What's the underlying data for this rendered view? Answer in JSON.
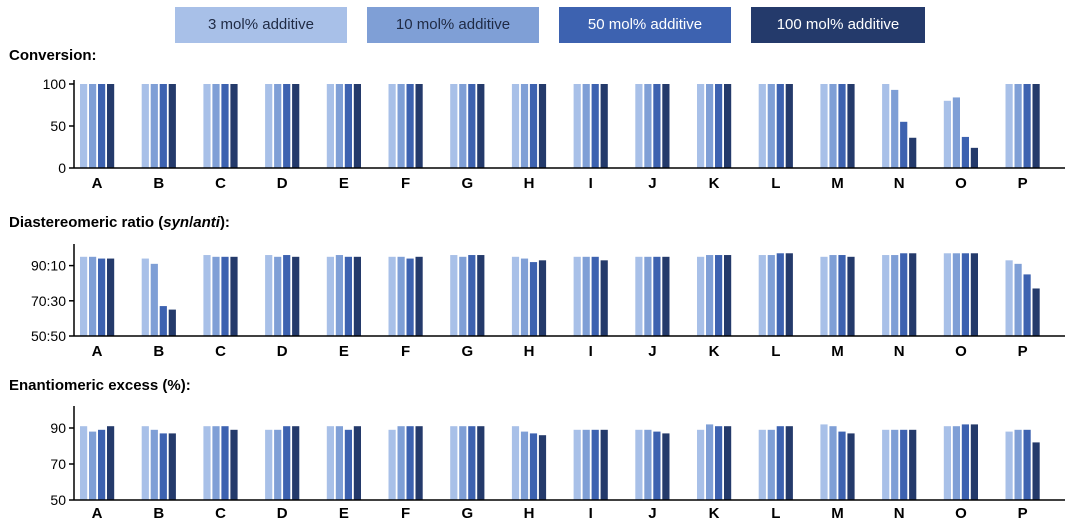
{
  "legend": {
    "items": [
      {
        "label": "3 mol% additive",
        "color": "#a8c0e8",
        "text_color": "#1f2a44"
      },
      {
        "label": "10 mol% additive",
        "color": "#7f9fd6",
        "text_color": "#1f2a44"
      },
      {
        "label": "50 mol% additive",
        "color": "#3d62b0",
        "text_color": "#ffffff"
      },
      {
        "label": "100 mol% additive",
        "color": "#243a6b",
        "text_color": "#ffffff"
      }
    ]
  },
  "panels": {
    "conversion": {
      "title": "Conversion:"
    },
    "dr": {
      "title_pre": "Diastereomeric ratio (",
      "title_em1": "syn",
      "title_slash": "/",
      "title_em2": "anti",
      "title_post": "):"
    },
    "ee": {
      "title": "Enantiomeric excess (%):"
    }
  },
  "chart_data": [
    {
      "type": "bar",
      "title": "Conversion:",
      "categories": [
        "A",
        "B",
        "C",
        "D",
        "E",
        "F",
        "G",
        "H",
        "I",
        "J",
        "K",
        "L",
        "M",
        "N",
        "O",
        "P"
      ],
      "ylim": [
        0,
        100
      ],
      "yticks": [
        0,
        50,
        100
      ],
      "ytick_labels": [
        "0",
        "50",
        "100"
      ],
      "series": [
        {
          "name": "3 mol% additive",
          "values": [
            100,
            100,
            100,
            100,
            100,
            100,
            100,
            100,
            100,
            100,
            100,
            100,
            100,
            100,
            80,
            100
          ]
        },
        {
          "name": "10 mol% additive",
          "values": [
            100,
            100,
            100,
            100,
            100,
            100,
            100,
            100,
            100,
            100,
            100,
            100,
            100,
            93,
            84,
            100
          ]
        },
        {
          "name": "50 mol% additive",
          "values": [
            100,
            100,
            100,
            100,
            100,
            100,
            100,
            100,
            100,
            100,
            100,
            100,
            100,
            55,
            37,
            100
          ]
        },
        {
          "name": "100 mol% additive",
          "values": [
            100,
            100,
            100,
            100,
            100,
            100,
            100,
            100,
            100,
            100,
            100,
            100,
            100,
            36,
            24,
            100
          ]
        }
      ]
    },
    {
      "type": "bar",
      "title": "Diastereomeric ratio (syn/anti):",
      "categories": [
        "A",
        "B",
        "C",
        "D",
        "E",
        "F",
        "G",
        "H",
        "I",
        "J",
        "K",
        "L",
        "M",
        "N",
        "O",
        "P"
      ],
      "ylim": [
        50,
        100
      ],
      "yticks": [
        50,
        70,
        90
      ],
      "ytick_labels": [
        "50:50",
        "70:30",
        "90:10"
      ],
      "series": [
        {
          "name": "3 mol% additive",
          "values": [
            95,
            94,
            96,
            96,
            95,
            95,
            96,
            95,
            95,
            95,
            95,
            96,
            95,
            96,
            97,
            93
          ]
        },
        {
          "name": "10 mol% additive",
          "values": [
            95,
            91,
            95,
            95,
            96,
            95,
            95,
            94,
            95,
            95,
            96,
            96,
            96,
            96,
            97,
            91
          ]
        },
        {
          "name": "50 mol% additive",
          "values": [
            94,
            67,
            95,
            96,
            95,
            94,
            96,
            92,
            95,
            95,
            96,
            97,
            96,
            97,
            97,
            85
          ]
        },
        {
          "name": "100 mol% additive",
          "values": [
            94,
            65,
            95,
            95,
            95,
            95,
            96,
            93,
            93,
            95,
            96,
            97,
            95,
            97,
            97,
            77
          ]
        }
      ]
    },
    {
      "type": "bar",
      "title": "Enantiomeric excess (%):",
      "categories": [
        "A",
        "B",
        "C",
        "D",
        "E",
        "F",
        "G",
        "H",
        "I",
        "J",
        "K",
        "L",
        "M",
        "N",
        "O",
        "P"
      ],
      "ylim": [
        50,
        100
      ],
      "yticks": [
        50,
        70,
        90
      ],
      "ytick_labels": [
        "50",
        "70",
        "90"
      ],
      "series": [
        {
          "name": "3 mol% additive",
          "values": [
            91,
            91,
            91,
            89,
            91,
            89,
            91,
            91,
            89,
            89,
            89,
            89,
            92,
            89,
            91,
            88
          ]
        },
        {
          "name": "10 mol% additive",
          "values": [
            88,
            89,
            91,
            89,
            91,
            91,
            91,
            88,
            89,
            89,
            92,
            89,
            91,
            89,
            91,
            89
          ]
        },
        {
          "name": "50 mol% additive",
          "values": [
            89,
            87,
            91,
            91,
            89,
            91,
            91,
            87,
            89,
            88,
            91,
            91,
            88,
            89,
            92,
            89
          ]
        },
        {
          "name": "100 mol% additive",
          "values": [
            91,
            87,
            89,
            91,
            91,
            91,
            91,
            86,
            89,
            87,
            91,
            91,
            87,
            89,
            92,
            82
          ]
        }
      ]
    }
  ]
}
